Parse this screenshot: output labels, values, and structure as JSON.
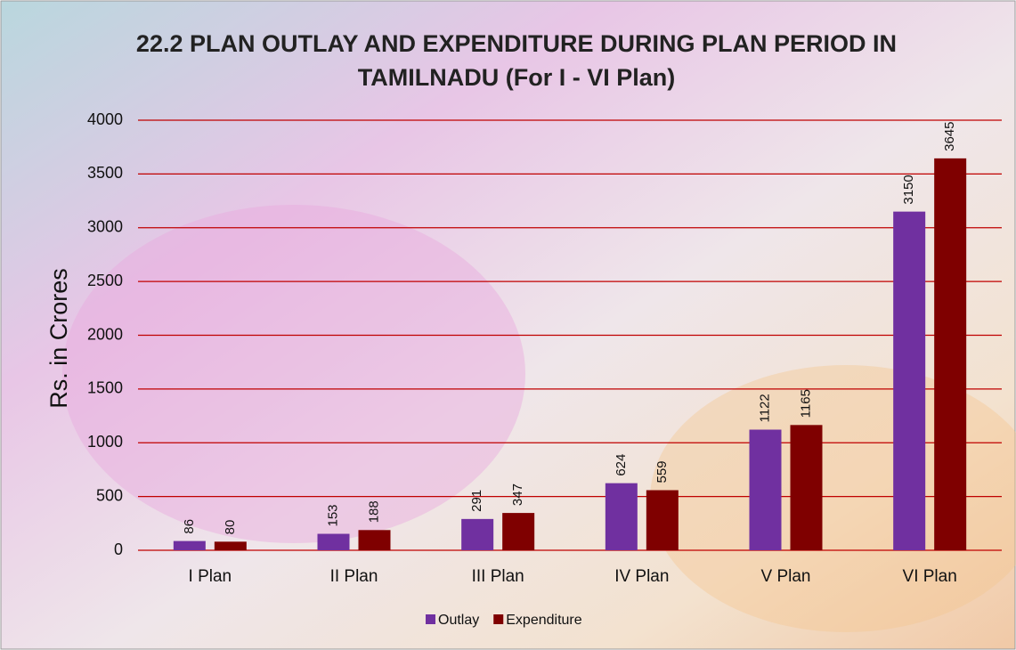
{
  "chart_data": {
    "type": "bar",
    "title": "22.2 PLAN OUTLAY AND EXPENDITURE DURING PLAN PERIOD IN TAMILNADU (For I - VI Plan)",
    "y_axis_label": "Rs. in Crores",
    "categories": [
      "I Plan",
      "II Plan",
      "III Plan",
      "IV Plan",
      "V Plan",
      "VI Plan"
    ],
    "series": [
      {
        "name": "Outlay",
        "color": "#7030a0",
        "values": [
          86,
          153,
          291,
          624,
          1122,
          3150
        ]
      },
      {
        "name": "Expenditure",
        "color": "#7f0000",
        "values": [
          80,
          188,
          347,
          559,
          1165,
          3645
        ]
      }
    ],
    "ylim": [
      0,
      4000
    ],
    "yticks": [
      0,
      500,
      1000,
      1500,
      2000,
      2500,
      3000,
      3500,
      4000
    ],
    "grid": true,
    "grid_color": "#c00000",
    "legend": "bottom"
  }
}
